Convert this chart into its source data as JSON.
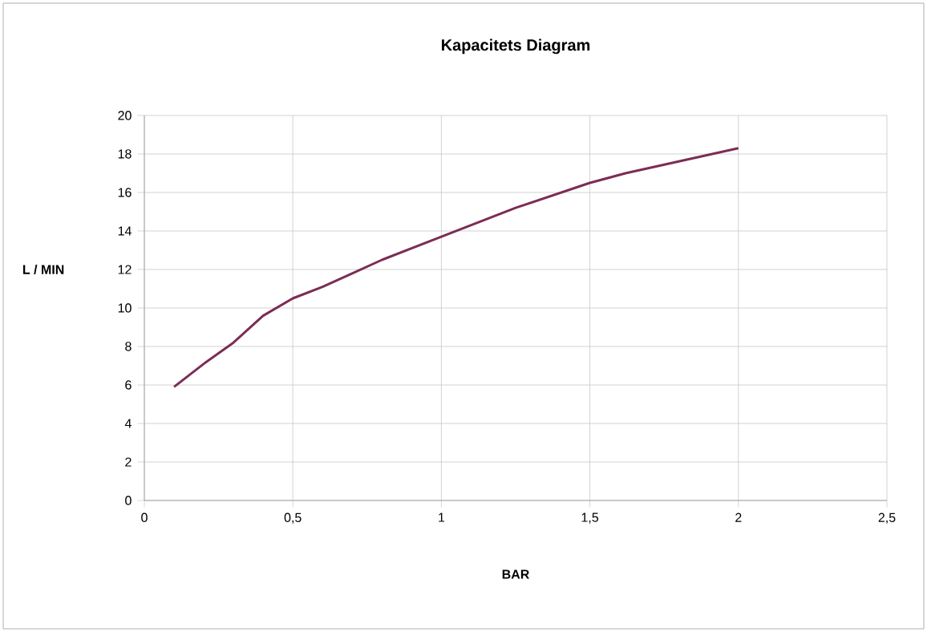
{
  "chart_data": {
    "type": "line",
    "title": "Kapacitets Diagram",
    "xlabel": "BAR",
    "ylabel": "L / MIN",
    "x": [
      0.1,
      0.2,
      0.3,
      0.4,
      0.5,
      0.6,
      0.7,
      0.8,
      1.0,
      1.25,
      1.5,
      1.62,
      2.0
    ],
    "series": [
      {
        "color": "#7b2d55",
        "values": [
          5.9,
          7.1,
          8.2,
          9.6,
          10.5,
          11.1,
          11.8,
          12.5,
          13.7,
          15.2,
          16.5,
          17.0,
          18.3
        ]
      }
    ],
    "xlim": [
      0,
      2.5
    ],
    "xticks": [
      0,
      {
        "value": 0.5,
        "label": "0,5"
      },
      1,
      {
        "value": 1.5,
        "label": "1,5"
      },
      2,
      {
        "value": 2.5,
        "label": "2,5"
      }
    ],
    "ylim": [
      0,
      20
    ],
    "yticks": [
      0,
      2,
      4,
      6,
      8,
      10,
      12,
      14,
      16,
      18,
      20
    ],
    "grid": true,
    "marker": "none",
    "line_style": "solid"
  }
}
